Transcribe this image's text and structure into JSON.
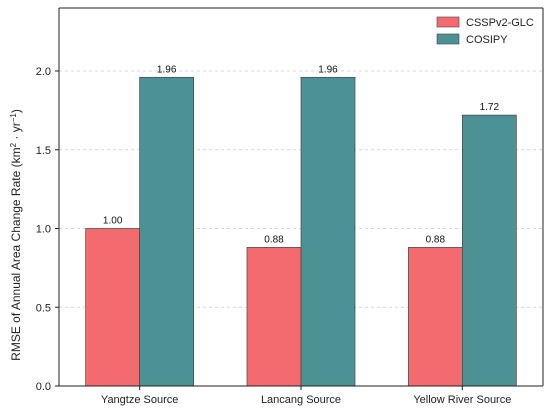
{
  "colors": {
    "CSSPv2-GLC": "#f46b6f",
    "COSIPY": "#4c9295",
    "axis": "#222222"
  },
  "chart_data": {
    "type": "bar",
    "categories": [
      "Yangtze Source",
      "Lancang Source",
      "Yellow River Source"
    ],
    "series": [
      {
        "name": "CSSPv2-GLC",
        "values": [
          1.0,
          0.88,
          0.88
        ],
        "labels": [
          "1.00",
          "0.88",
          "0.88"
        ]
      },
      {
        "name": "COSIPY",
        "values": [
          1.96,
          1.96,
          1.72
        ],
        "labels": [
          "1.96",
          "1.96",
          "1.72"
        ]
      }
    ],
    "ylabel": {
      "prefix": "RMSE of Annual Area Change Rate (km",
      "sup1": "2",
      "mid": " · yr",
      "sup2": "−1",
      "suffix": ")"
    },
    "ylim": [
      0,
      2.4
    ],
    "yticks": [
      "0.0",
      "0.5",
      "1.0",
      "1.5",
      "2.0"
    ],
    "ytick_values": [
      0,
      0.5,
      1.0,
      1.5,
      2.0
    ],
    "grid": "horizontal dashed",
    "legend_position": "top-right"
  }
}
